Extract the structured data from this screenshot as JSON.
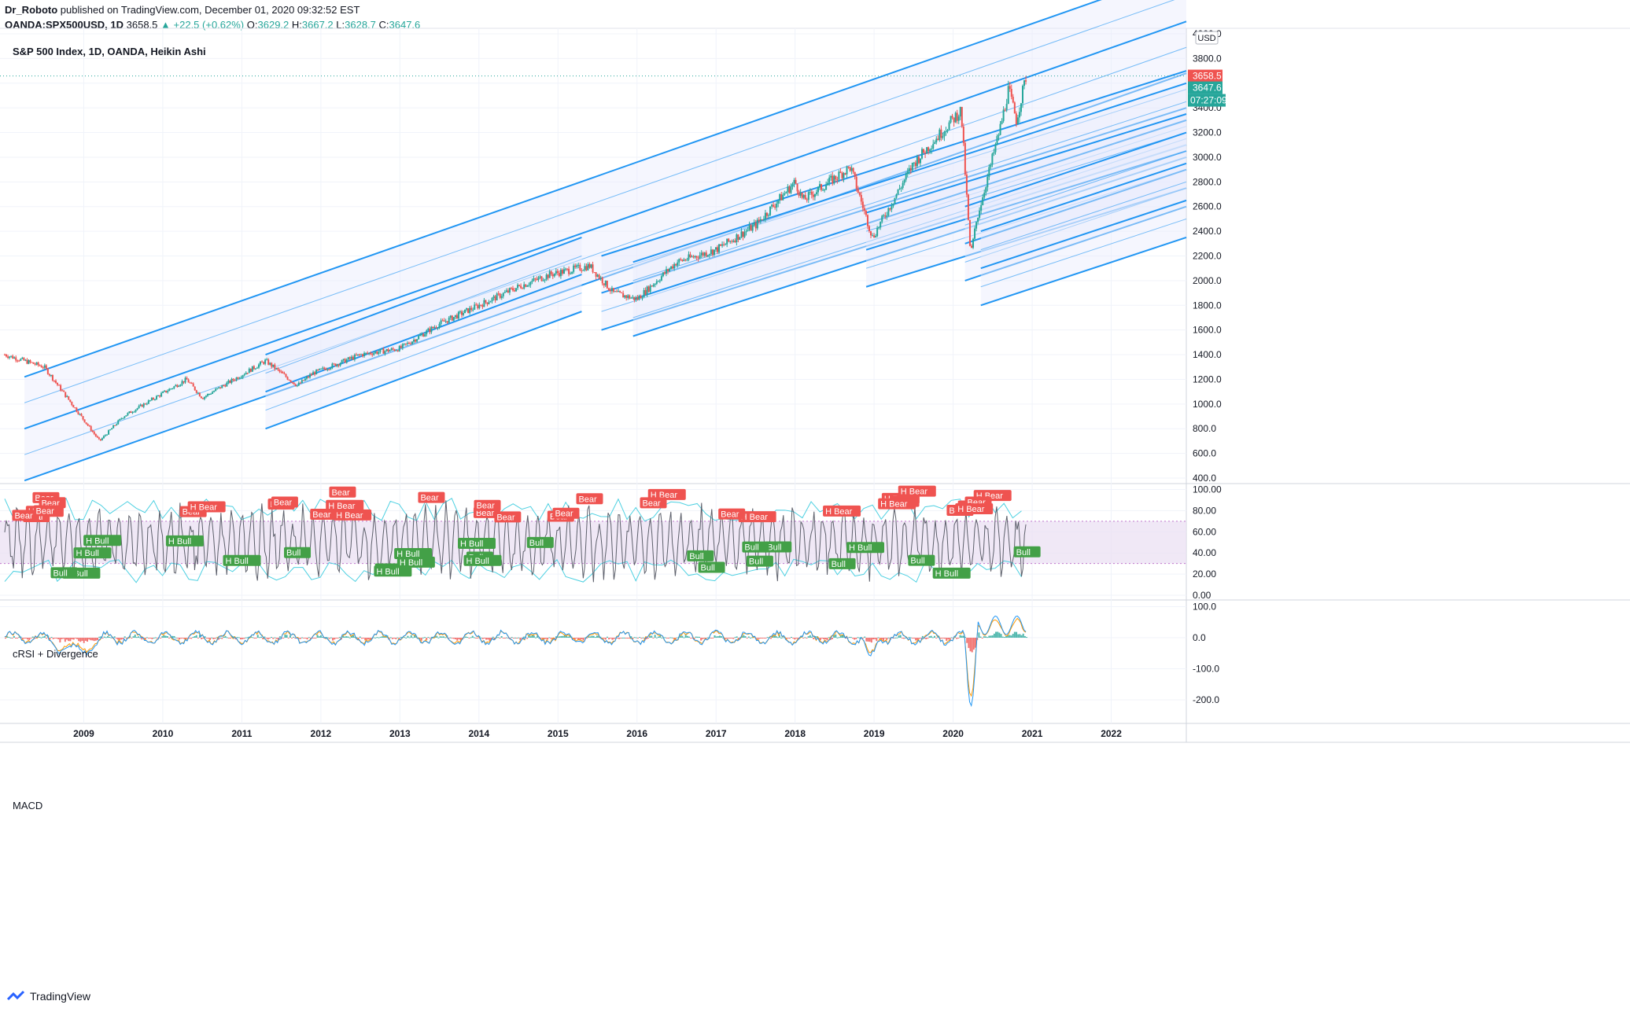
{
  "header": {
    "author": "Dr_Roboto",
    "published_text": "published on TradingView.com, December 01, 2020 09:32:52 EST",
    "symbol": "OANDA:SPX500USD, 1D",
    "last": "3658.5",
    "change": "+22.5 (+0.62%)",
    "o_label": "O:",
    "o": "3629.2",
    "h_label": "H:",
    "h": "3667.2",
    "l_label": "L:",
    "l": "3628.7",
    "c_label": "C:",
    "c": "3647.6"
  },
  "footer": {
    "brand": "TradingView"
  },
  "colors": {
    "up": "#26a69a",
    "down": "#ef5350",
    "channel": "#2196f3",
    "fill": "#e8eafc",
    "rsi_band": "#e9def2",
    "bear": "#ef5350",
    "bull": "#43a047"
  },
  "chart_data": [
    {
      "type": "line",
      "title": "S&P 500 Index, 1D, OANDA, Heikin Ashi",
      "currency": "USD",
      "x_ticks": [
        "2009",
        "2010",
        "2011",
        "2012",
        "2013",
        "2014",
        "2015",
        "2016",
        "2017",
        "2018",
        "2019",
        "2020",
        "2021",
        "2022"
      ],
      "ylim": [
        400,
        4000
      ],
      "y_ticks": [
        "400.0",
        "600.0",
        "800.0",
        "1000.0",
        "1200.0",
        "1400.0",
        "1600.0",
        "1800.0",
        "2000.0",
        "2200.0",
        "2400.0",
        "2600.0",
        "2800.0",
        "3000.0",
        "3200.0",
        "3400.0",
        "3600.0",
        "3800.0",
        "4000.0"
      ],
      "series": [
        {
          "x": [
            2008.0,
            2008.5,
            2009.2,
            2009.5,
            2010.3,
            2010.5,
            2011.3,
            2011.7,
            2011.9,
            2012.5,
            2013.0,
            2013.5,
            2014.0,
            2014.5,
            2014.9,
            2015.4,
            2015.7,
            2016.0,
            2016.5,
            2017.0,
            2017.5,
            2018.0,
            2018.1,
            2018.7,
            2018.98,
            2019.5,
            2020.1,
            2020.22,
            2020.3,
            2020.6,
            2020.7,
            2020.8,
            2020.92
          ],
          "values": [
            1400,
            1300,
            700,
            900,
            1200,
            1050,
            1350,
            1150,
            1250,
            1400,
            1450,
            1650,
            1800,
            1950,
            2050,
            2120,
            1900,
            1850,
            2150,
            2250,
            2450,
            2800,
            2650,
            2920,
            2350,
            2950,
            3380,
            2200,
            2500,
            3250,
            3550,
            3300,
            3650
          ]
        }
      ],
      "last_price": "3658.5",
      "last_close": "3647.6",
      "countdown": "07:27:09"
    },
    {
      "type": "line",
      "title": "cRSI + Divergence",
      "ylim": [
        0,
        100
      ],
      "y_ticks": [
        "0.00",
        "20.00",
        "40.00",
        "60.00",
        "80.00",
        "100.00"
      ],
      "band": [
        30,
        70
      ],
      "labels": [
        "Bear",
        "H Bear",
        "Bull",
        "H Bull"
      ]
    },
    {
      "type": "line",
      "title": "MACD",
      "ylim": [
        -230,
        110
      ],
      "y_ticks": [
        "100.0",
        "0.0",
        "-100.0",
        "-200.0"
      ]
    }
  ]
}
